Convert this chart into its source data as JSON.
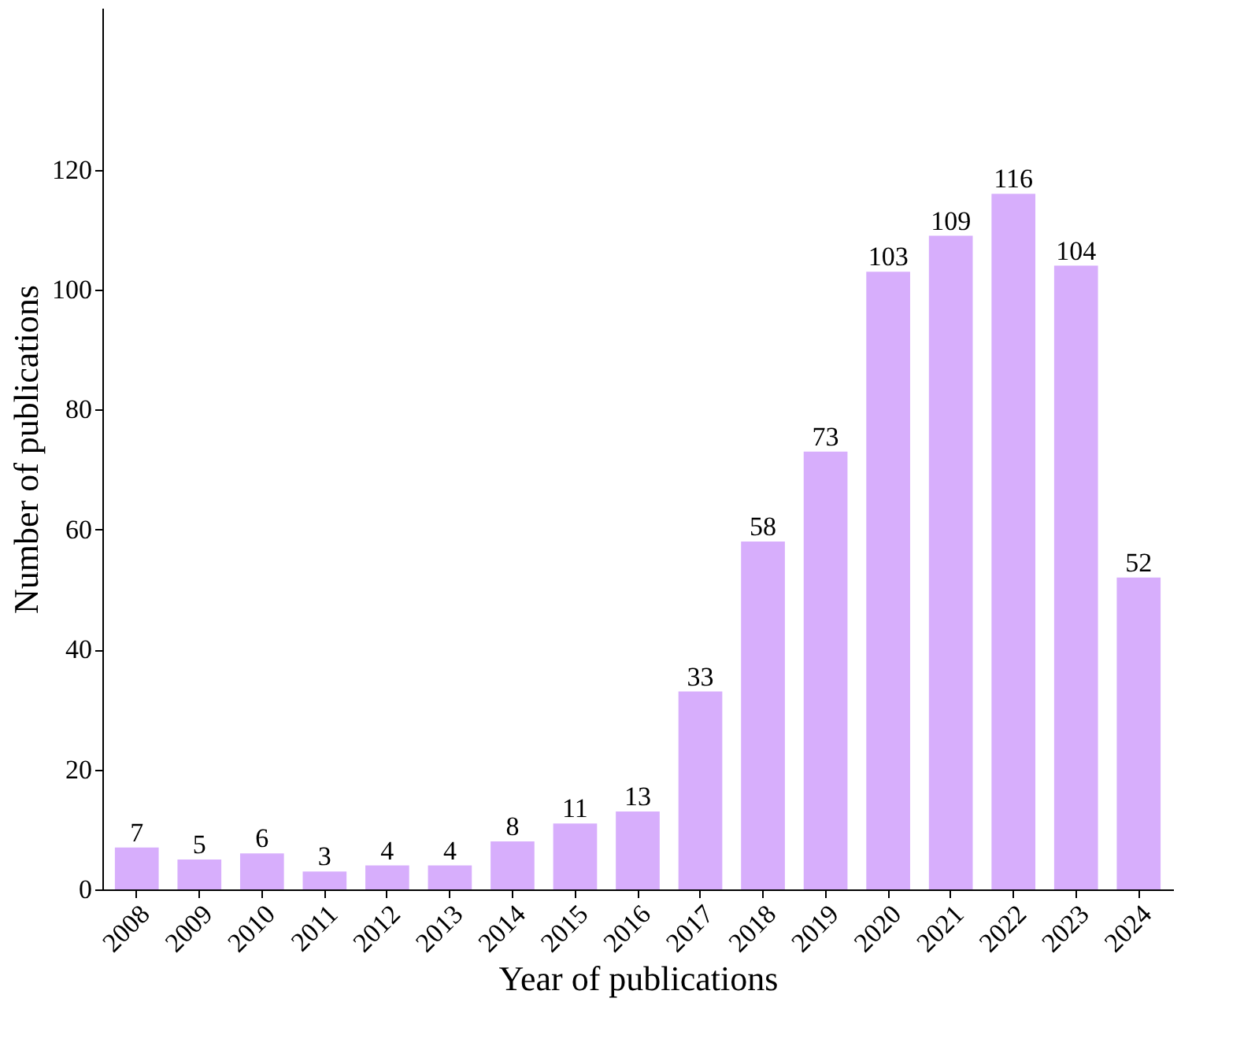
{
  "chart_data": {
    "type": "bar",
    "xlabel": "Year of publications",
    "ylabel": "Number of publications",
    "categories": [
      "2008",
      "2009",
      "2010",
      "2011",
      "2012",
      "2013",
      "2014",
      "2015",
      "2016",
      "2017",
      "2018",
      "2019",
      "2020",
      "2021",
      "2022",
      "2023",
      "2024"
    ],
    "values": [
      7,
      5,
      6,
      3,
      4,
      4,
      8,
      11,
      13,
      33,
      58,
      73,
      103,
      109,
      116,
      104,
      52
    ],
    "color": "#d7aefc",
    "ylim": [
      0,
      147
    ],
    "yticks": [
      0,
      20,
      40,
      60,
      80,
      100,
      120
    ],
    "data_labels": true,
    "grid": false
  }
}
